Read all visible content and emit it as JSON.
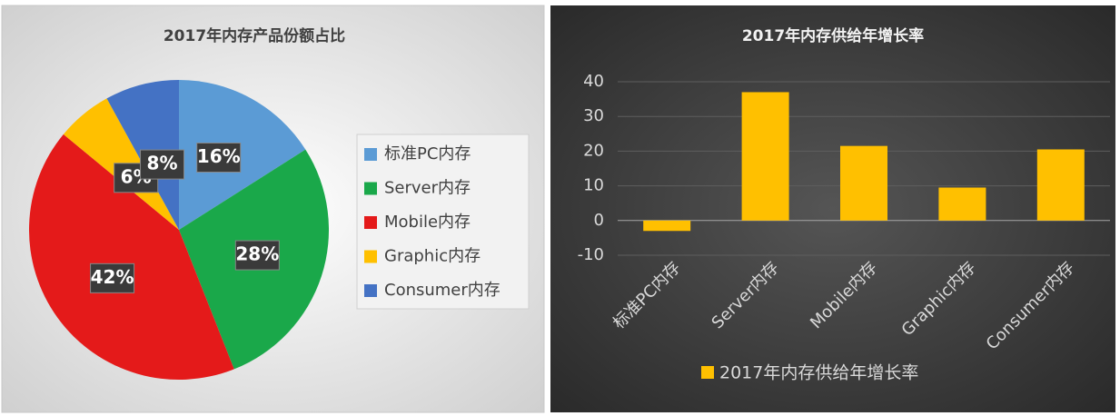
{
  "chart_data": [
    {
      "type": "pie",
      "title": "2017年内存产品份额占比",
      "categories": [
        "标准PC内存",
        "Server内存",
        "Mobile内存",
        "Graphic内存",
        "Consumer内存"
      ],
      "values": [
        16,
        28,
        42,
        6,
        8
      ],
      "value_labels": [
        "16%",
        "28%",
        "42%",
        "6%",
        "8%"
      ],
      "colors": [
        "#5b9bd5",
        "#1aa84a",
        "#e41a1a",
        "#ffc000",
        "#4472c4"
      ]
    },
    {
      "type": "bar",
      "title": "2017年内存供给年增长率",
      "categories": [
        "标准PC内存",
        "Server内存",
        "Mobile内存",
        "Graphic内存",
        "Consumer内存"
      ],
      "series": [
        {
          "name": "2017年内存供给年增长率",
          "color": "#ffc000",
          "values": [
            -3,
            37,
            21.5,
            9.5,
            20.5
          ]
        }
      ],
      "ylim": [
        -10,
        40
      ],
      "yticks": [
        -10,
        0,
        10,
        20,
        30,
        40
      ],
      "grid": true
    }
  ]
}
